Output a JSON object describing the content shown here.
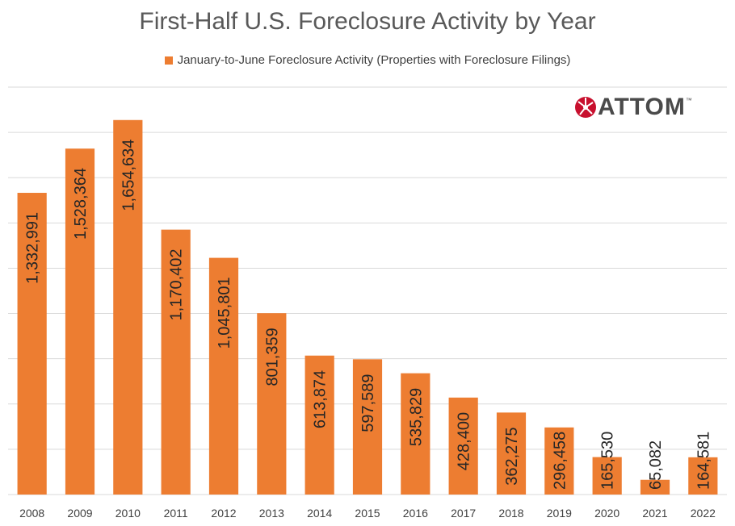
{
  "chart_data": {
    "type": "bar",
    "title": "First-Half U.S. Foreclosure Activity by Year",
    "legend": "January-to-June Foreclosure Activity (Properties with Foreclosure Filings)",
    "legend_position": "top",
    "categories": [
      "2008",
      "2009",
      "2010",
      "2011",
      "2012",
      "2013",
      "2014",
      "2015",
      "2016",
      "2017",
      "2018",
      "2019",
      "2020",
      "2021",
      "2022"
    ],
    "series": [
      {
        "name": "January-to-June Foreclosure Activity (Properties with Foreclosure Filings)",
        "values": [
          1332991,
          1528364,
          1654634,
          1170402,
          1045801,
          801359,
          613874,
          597589,
          535829,
          428400,
          362275,
          296458,
          165530,
          65082,
          164581
        ],
        "labels": [
          "1,332,991",
          "1,528,364",
          "1,654,634",
          "1,170,402",
          "1,045,801",
          "801,359",
          "613,874",
          "597,589",
          "535,829",
          "428,400",
          "362,275",
          "296,458",
          "165,530",
          "65,082",
          "164,581"
        ]
      }
    ],
    "ylim": [
      0,
      1800000
    ],
    "gridlines": true,
    "xlabel": "",
    "ylabel": "",
    "bar_color": "#ED7D31"
  },
  "logo": {
    "text": "ATTOM",
    "tm": "™",
    "accent_color": "#C8102E"
  }
}
